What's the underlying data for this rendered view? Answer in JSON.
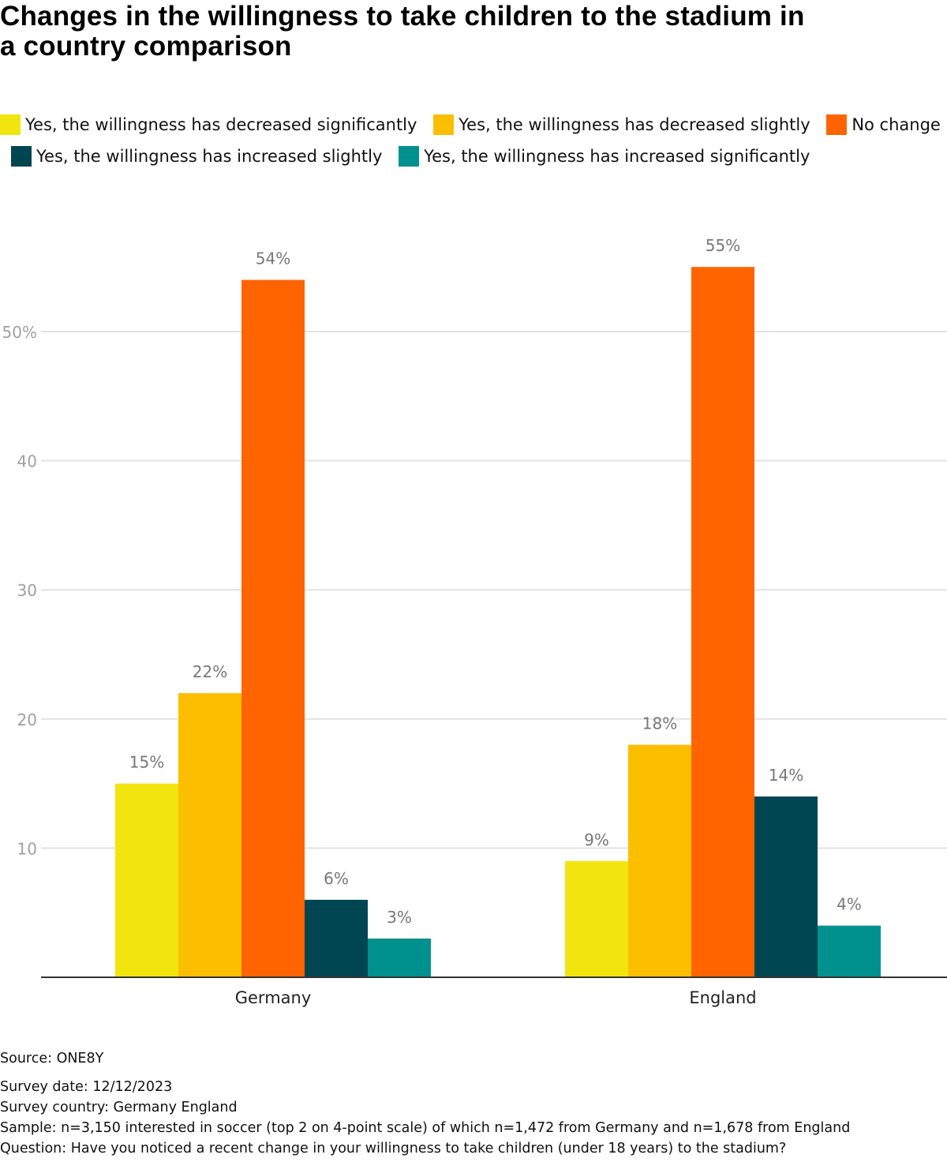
{
  "title": "Changes in the willingness to take children to the stadium in a country comparison",
  "title_lines": [
    "Changes in the willingness to take children to the stadium in",
    "a country comparison"
  ],
  "legend": [
    {
      "label": "Yes, the willingness has decreased significantly",
      "color": "#f2e50f"
    },
    {
      "label": "Yes, the willingness has decreased slightly",
      "color": "#fcbf00"
    },
    {
      "label": "No change",
      "color": "#ff6400"
    },
    {
      "label": "Yes, the willingness has increased slightly",
      "color": "#004552"
    },
    {
      "label": "Yes, the willingness has increased significantly",
      "color": "#00918e"
    }
  ],
  "chart_data": {
    "type": "bar",
    "title": "Changes in the willingness to take children to the stadium in a country comparison",
    "xlabel": "",
    "ylabel": "",
    "categories": [
      "Germany",
      "England"
    ],
    "series": [
      {
        "name": "Yes, the willingness has decreased significantly",
        "color": "#f2e50f",
        "values": [
          15,
          9
        ],
        "labels": [
          "15%",
          "9%"
        ]
      },
      {
        "name": "Yes, the willingness has decreased slightly",
        "color": "#fcbf00",
        "values": [
          22,
          18
        ],
        "labels": [
          "22%",
          "18%"
        ]
      },
      {
        "name": "No change",
        "color": "#ff6400",
        "values": [
          54,
          55
        ],
        "labels": [
          "54%",
          "55%"
        ]
      },
      {
        "name": "Yes, the willingness has increased slightly",
        "color": "#004552",
        "values": [
          6,
          14
        ],
        "labels": [
          "6%",
          "14%"
        ]
      },
      {
        "name": "Yes, the willingness has increased significantly",
        "color": "#00918e",
        "values": [
          3,
          4
        ],
        "labels": [
          "3%",
          "4%"
        ]
      }
    ],
    "yticks": [
      10,
      20,
      30,
      40,
      50
    ],
    "ytick_labels": [
      "10",
      "20",
      "30",
      "40",
      "50%"
    ],
    "ylim": [
      0,
      57
    ],
    "grid": true,
    "legend_position": "top"
  },
  "footer": {
    "source": "Source: ONE8Y",
    "lines": [
      "Survey date: 12/12/2023",
      "Survey country: Germany England",
      "Sample: n=3,150 interested in soccer (top 2 on 4-point scale) of which n=1,472 from Germany and n=1,678 from England",
      "Question: Have you noticed a recent change in your willingness to take children (under 18 years) to the stadium?"
    ]
  }
}
